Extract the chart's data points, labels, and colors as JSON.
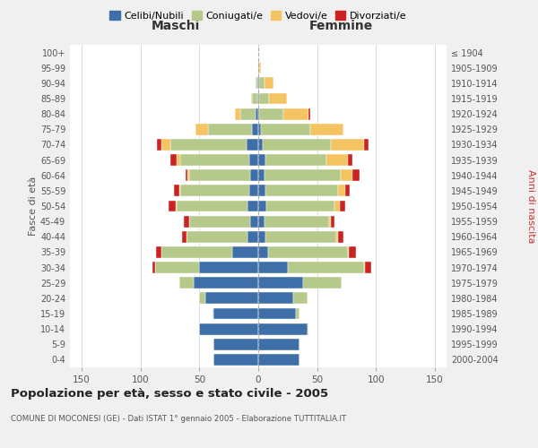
{
  "age_groups": [
    "0-4",
    "5-9",
    "10-14",
    "15-19",
    "20-24",
    "25-29",
    "30-34",
    "35-39",
    "40-44",
    "45-49",
    "50-54",
    "55-59",
    "60-64",
    "65-69",
    "70-74",
    "75-79",
    "80-84",
    "85-89",
    "90-94",
    "95-99",
    "100+"
  ],
  "birth_years": [
    "2000-2004",
    "1995-1999",
    "1990-1994",
    "1985-1989",
    "1980-1984",
    "1975-1979",
    "1970-1974",
    "1965-1969",
    "1960-1964",
    "1955-1959",
    "1950-1954",
    "1945-1949",
    "1940-1944",
    "1935-1939",
    "1930-1934",
    "1925-1929",
    "1920-1924",
    "1915-1919",
    "1910-1914",
    "1905-1909",
    "≤ 1904"
  ],
  "maschi": {
    "celibi": [
      38,
      38,
      50,
      38,
      45,
      55,
      50,
      22,
      9,
      7,
      9,
      8,
      7,
      8,
      10,
      5,
      2,
      1,
      1,
      0,
      0
    ],
    "coniugati": [
      0,
      0,
      0,
      1,
      5,
      12,
      38,
      60,
      52,
      52,
      60,
      58,
      52,
      58,
      65,
      38,
      13,
      4,
      1,
      0,
      0
    ],
    "vedovi": [
      0,
      0,
      0,
      0,
      0,
      0,
      0,
      0,
      0,
      0,
      1,
      1,
      1,
      3,
      7,
      10,
      5,
      1,
      0,
      0,
      0
    ],
    "divorziati": [
      0,
      0,
      0,
      0,
      0,
      0,
      2,
      5,
      4,
      4,
      6,
      5,
      2,
      6,
      4,
      0,
      0,
      0,
      0,
      0,
      0
    ]
  },
  "femmine": {
    "nubili": [
      35,
      35,
      42,
      32,
      30,
      38,
      25,
      8,
      6,
      5,
      7,
      6,
      5,
      6,
      4,
      2,
      1,
      1,
      1,
      0,
      0
    ],
    "coniugate": [
      0,
      0,
      1,
      3,
      12,
      33,
      65,
      68,
      60,
      55,
      58,
      62,
      65,
      52,
      58,
      42,
      20,
      8,
      4,
      1,
      0
    ],
    "vedove": [
      0,
      0,
      0,
      0,
      0,
      0,
      1,
      1,
      2,
      2,
      4,
      6,
      10,
      18,
      28,
      28,
      22,
      15,
      8,
      1,
      0
    ],
    "divorziate": [
      0,
      0,
      0,
      0,
      0,
      0,
      5,
      6,
      4,
      3,
      5,
      4,
      6,
      4,
      4,
      0,
      1,
      0,
      0,
      0,
      0
    ]
  },
  "colors": {
    "celibi": "#3e6fa8",
    "coniugati": "#b5c98a",
    "vedovi": "#f5c462",
    "divorziati": "#cc2222"
  },
  "xlim": 160,
  "title": "Popolazione per età, sesso e stato civile - 2005",
  "subtitle": "COMUNE DI MOCONESI (GE) - Dati ISTAT 1° gennaio 2005 - Elaborazione TUTTITALIA.IT",
  "xlabel_left": "Maschi",
  "xlabel_right": "Femmine",
  "ylabel_left": "Fasce di età",
  "ylabel_right": "Anni di nascita",
  "bg_color": "#f0f0f0",
  "plot_bg": "#ffffff",
  "legend_labels": [
    "Celibi/Nubili",
    "Coniugati/e",
    "Vedovi/e",
    "Divorziati/e"
  ]
}
